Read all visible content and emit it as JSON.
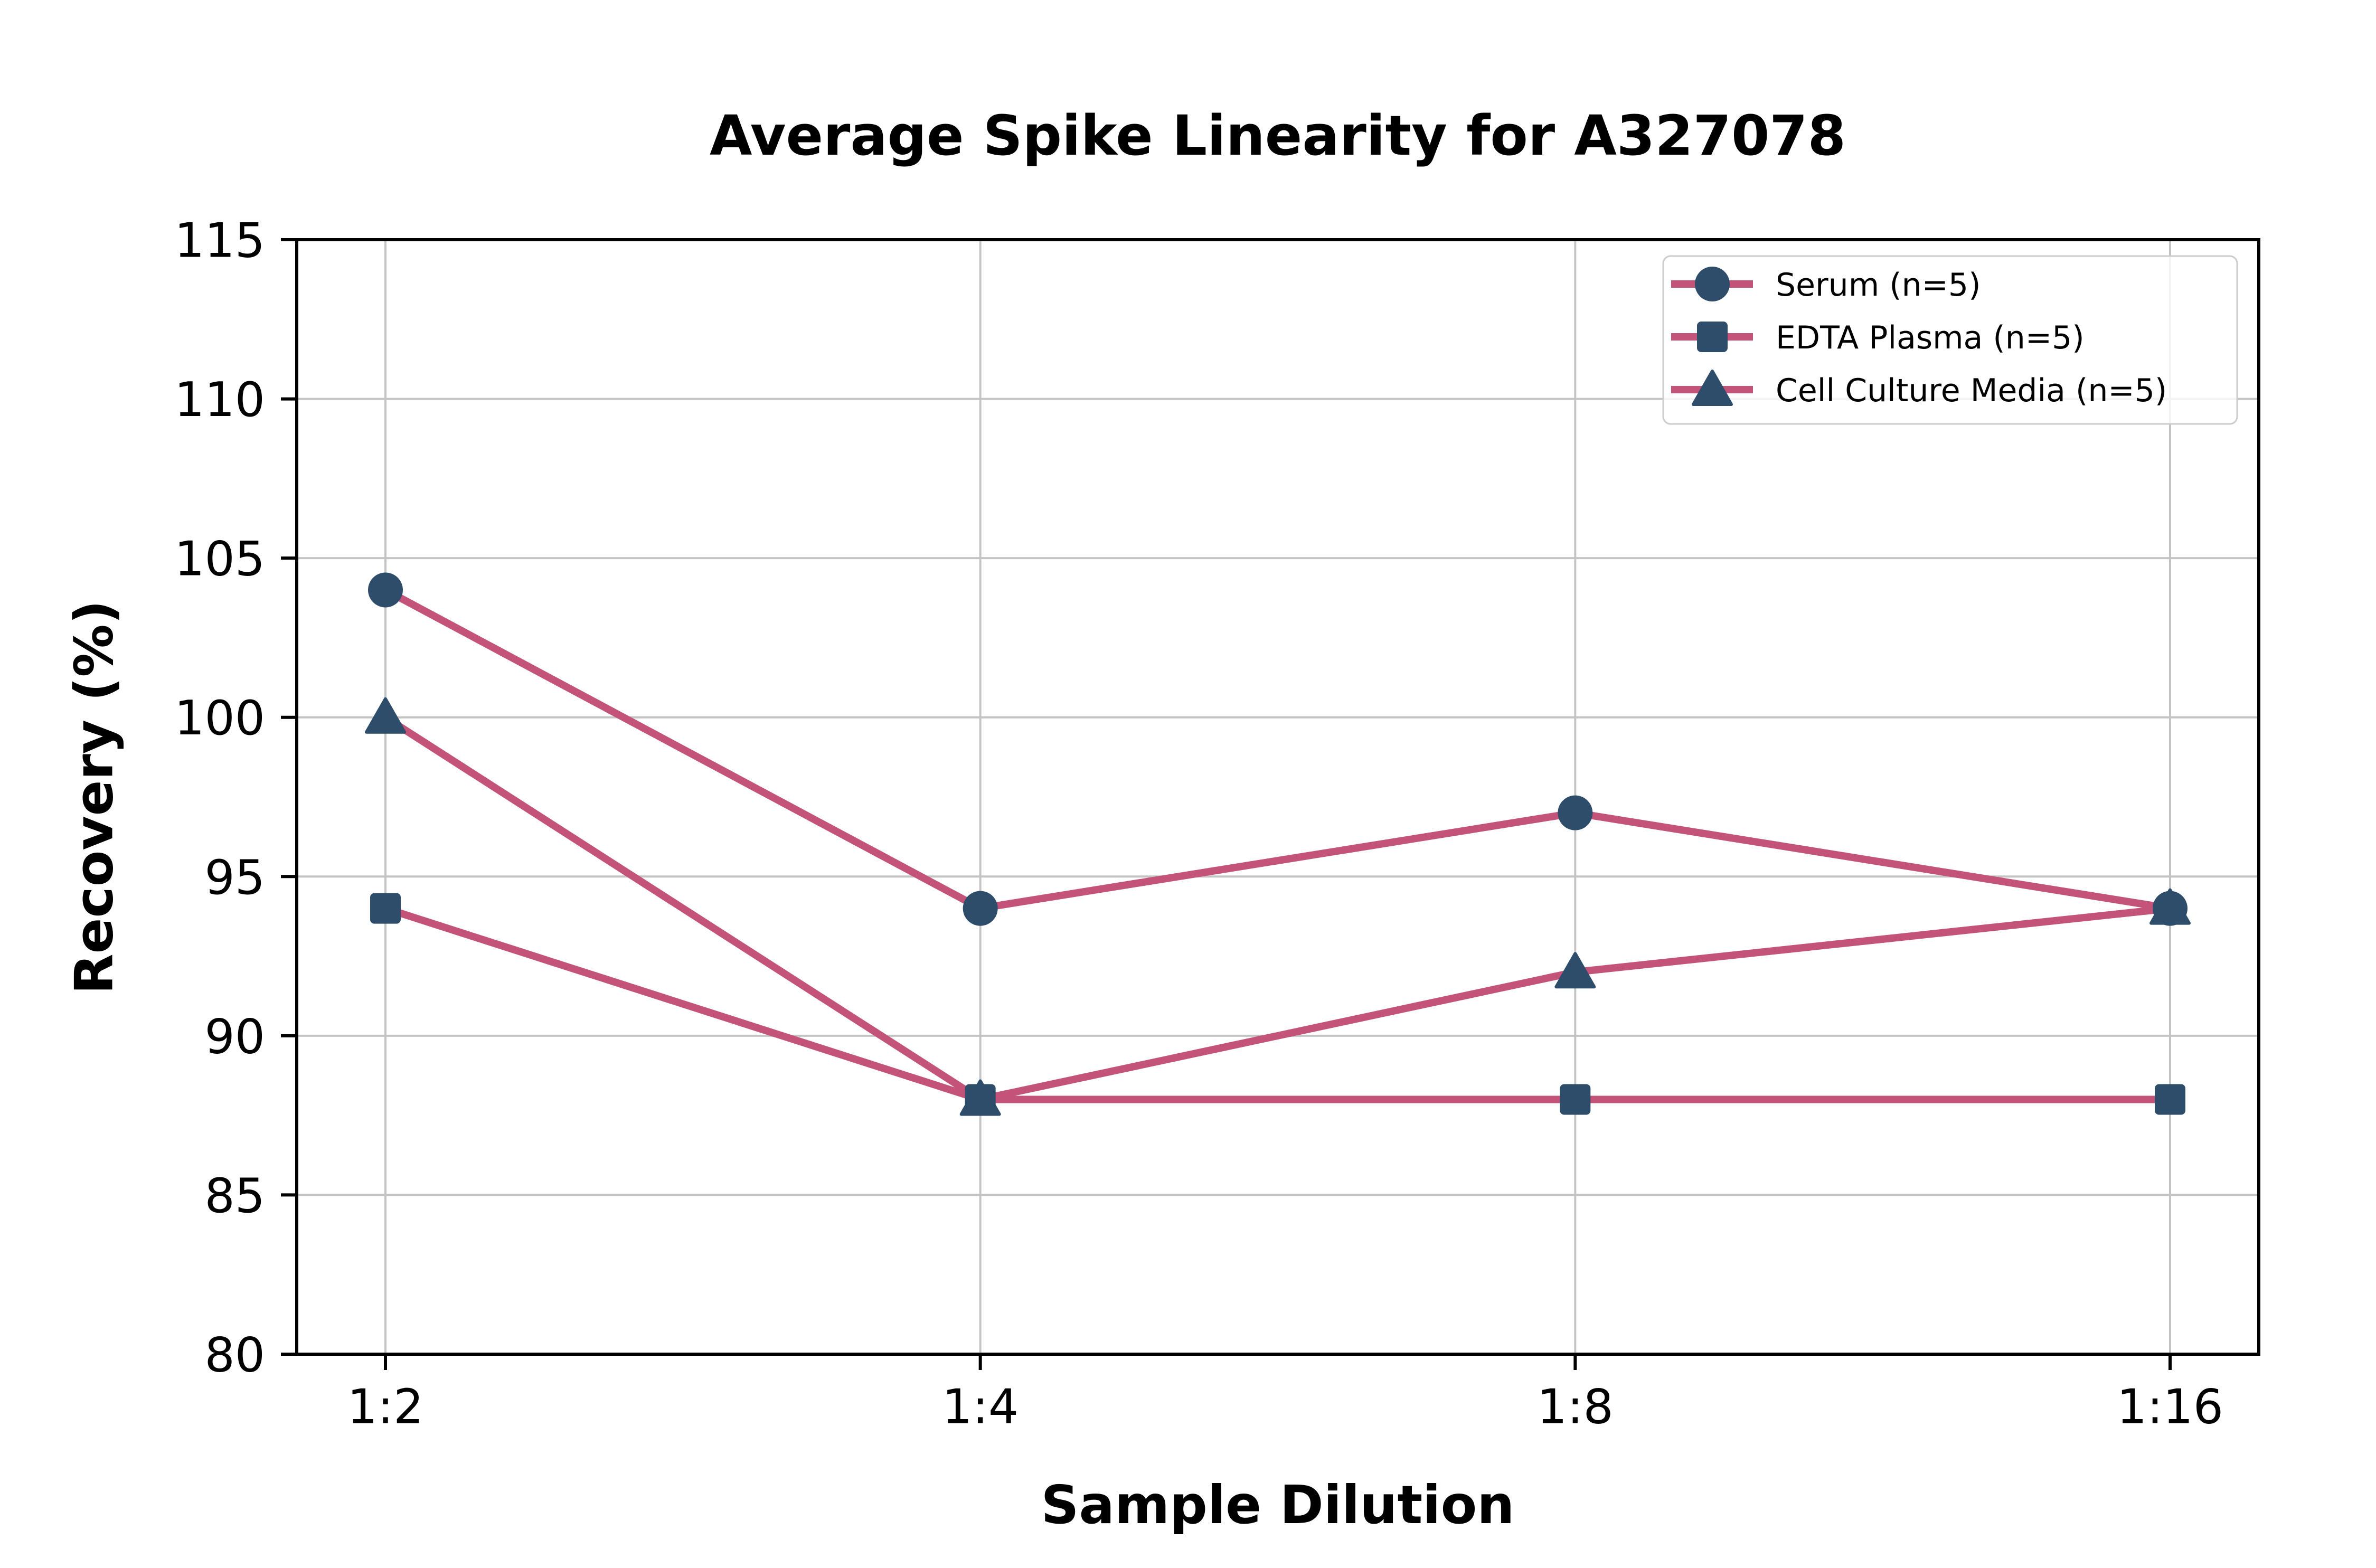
{
  "chart_data": {
    "type": "line",
    "title": "Average Spike Linearity for A327078",
    "xlabel": "Sample Dilution",
    "ylabel": "Recovery (%)",
    "categories": [
      "1:2",
      "1:4",
      "1:8",
      "1:16"
    ],
    "series": [
      {
        "name": "Serum (n=5)",
        "marker": "circle",
        "values": [
          104,
          94,
          97,
          94
        ]
      },
      {
        "name": "EDTA Plasma (n=5)",
        "marker": "square",
        "values": [
          94,
          88,
          88,
          88
        ]
      },
      {
        "name": "Cell Culture Media (n=5)",
        "marker": "triangle",
        "values": [
          100,
          88,
          92,
          94
        ]
      }
    ],
    "ylim": [
      80,
      115
    ],
    "yticks": [
      80,
      85,
      90,
      95,
      100,
      105,
      110,
      115
    ],
    "grid": true,
    "legend_position": "upper right",
    "colors": {
      "line": "#c4537a",
      "marker": "#2e4d6b",
      "grid": "#c4c4c4",
      "spine": "#000000",
      "legend_border": "#cccccc",
      "legend_background": "#ffffff",
      "background": "#ffffff",
      "text": "#000000"
    }
  }
}
